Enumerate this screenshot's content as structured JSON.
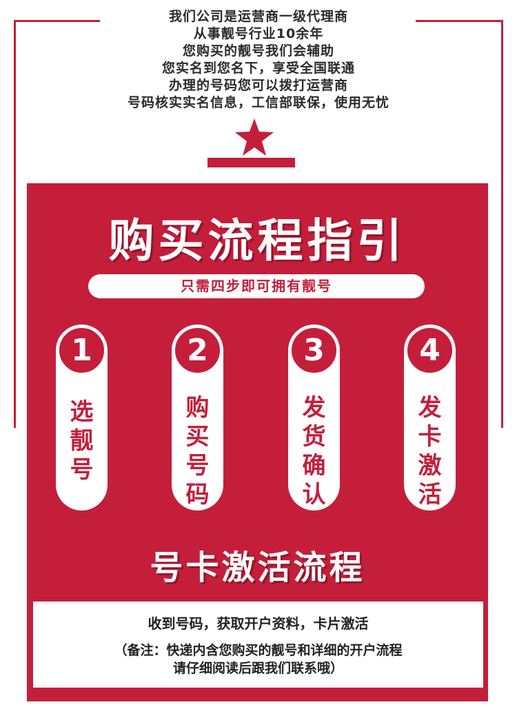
{
  "intro_lines": [
    "我们公司是运营商一级代理商",
    "从事靓号行业10余年",
    "您购买的靓号我们会辅助",
    "您实名到您名下，享受全国联通",
    "办理的号码您可以拨打运营商",
    "号码核实实名信息，工信部联保，使用无忧"
  ],
  "colors": {
    "accent": "#c41e3a",
    "text": "#2a2a2a",
    "white": "#ffffff"
  },
  "guide": {
    "title": "购买流程指引",
    "subtitle": "只需四步即可拥有靓号",
    "steps": [
      {
        "number": "1",
        "label": [
          "选",
          "靓",
          "号"
        ]
      },
      {
        "number": "2",
        "label": [
          "购",
          "买",
          "号",
          "码"
        ]
      },
      {
        "number": "3",
        "label": [
          "发",
          "货",
          "确",
          "认"
        ]
      },
      {
        "number": "4",
        "label": [
          "发",
          "卡",
          "激",
          "活"
        ]
      }
    ]
  },
  "activation": {
    "title": "号卡激活流程",
    "line1": "收到号码，获取开户资料，卡片激活",
    "line2": "（备注：快递内含您购买的靓号和详细的开户流程",
    "line3": "请仔细阅读后跟我们联系哦）"
  },
  "icons": {
    "star": "star-icon"
  }
}
